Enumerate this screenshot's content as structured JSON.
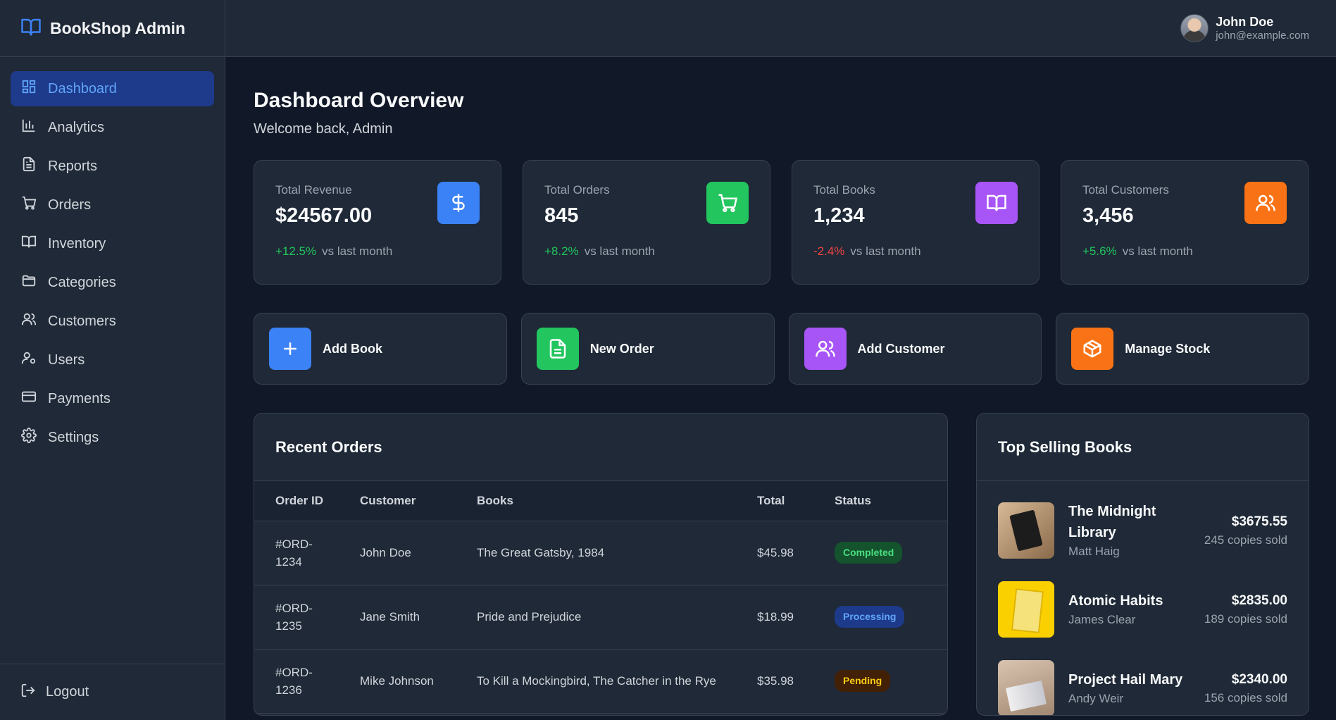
{
  "brand": {
    "name": "BookShop Admin"
  },
  "sidebar": {
    "items": [
      {
        "label": "Dashboard",
        "icon": "dashboard-icon",
        "active": true
      },
      {
        "label": "Analytics",
        "icon": "bar-chart-icon"
      },
      {
        "label": "Reports",
        "icon": "file-icon"
      },
      {
        "label": "Orders",
        "icon": "cart-icon"
      },
      {
        "label": "Inventory",
        "icon": "book-open-icon"
      },
      {
        "label": "Categories",
        "icon": "folder-icon"
      },
      {
        "label": "Customers",
        "icon": "users-icon"
      },
      {
        "label": "Users",
        "icon": "user-cog-icon"
      },
      {
        "label": "Payments",
        "icon": "credit-card-icon"
      },
      {
        "label": "Settings",
        "icon": "gear-icon"
      }
    ],
    "logout_label": "Logout"
  },
  "header": {
    "user_name": "John Doe",
    "user_email": "john@example.com"
  },
  "main": {
    "title": "Dashboard Overview",
    "subtitle": "Welcome back, Admin",
    "stats": [
      {
        "label": "Total Revenue",
        "value": "$24567.00",
        "trend": "+12.5%",
        "trend_text": "vs last month",
        "color": "#3b82f6",
        "icon": "dollar-icon"
      },
      {
        "label": "Total Orders",
        "value": "845",
        "trend": "+8.2%",
        "trend_text": "vs last month",
        "color": "#22c55e",
        "icon": "cart-icon"
      },
      {
        "label": "Total Books",
        "value": "1,234",
        "trend": "-2.4%",
        "trend_text": "vs last month",
        "color": "#a855f7",
        "icon": "book-open-icon"
      },
      {
        "label": "Total Customers",
        "value": "3,456",
        "trend": "+5.6%",
        "trend_text": "vs last month",
        "color": "#f97316",
        "icon": "users-icon"
      }
    ],
    "actions": [
      {
        "label": "Add Book",
        "icon": "plus-icon"
      },
      {
        "label": "New Order",
        "icon": "document-icon"
      },
      {
        "label": "Add Customer",
        "icon": "users-icon"
      },
      {
        "label": "Manage Stock",
        "icon": "box-icon"
      }
    ],
    "recent_orders": {
      "title": "Recent Orders",
      "columns": [
        "Order ID",
        "Customer",
        "Books",
        "Total",
        "Status"
      ],
      "rows": [
        {
          "id": "#ORD-1234",
          "customer": "John Doe",
          "books": "The Great Gatsby, 1984",
          "total": "$45.98",
          "status": "Completed"
        },
        {
          "id": "#ORD-1235",
          "customer": "Jane Smith",
          "books": "Pride and Prejudice",
          "total": "$18.99",
          "status": "Processing"
        },
        {
          "id": "#ORD-1236",
          "customer": "Mike Johnson",
          "books": "To Kill a Mockingbird, The Catcher in the Rye",
          "total": "$35.98",
          "status": "Pending"
        }
      ]
    },
    "top_books": {
      "title": "Top Selling Books",
      "items": [
        {
          "title": "The Midnight Library",
          "author": "Matt Haig",
          "revenue": "$3675.55",
          "sold": "245 copies sold"
        },
        {
          "title": "Atomic Habits",
          "author": "James Clear",
          "revenue": "$2835.00",
          "sold": "189 copies sold"
        },
        {
          "title": "Project Hail Mary",
          "author": "Andy Weir",
          "revenue": "$2340.00",
          "sold": "156 copies sold"
        }
      ]
    }
  }
}
